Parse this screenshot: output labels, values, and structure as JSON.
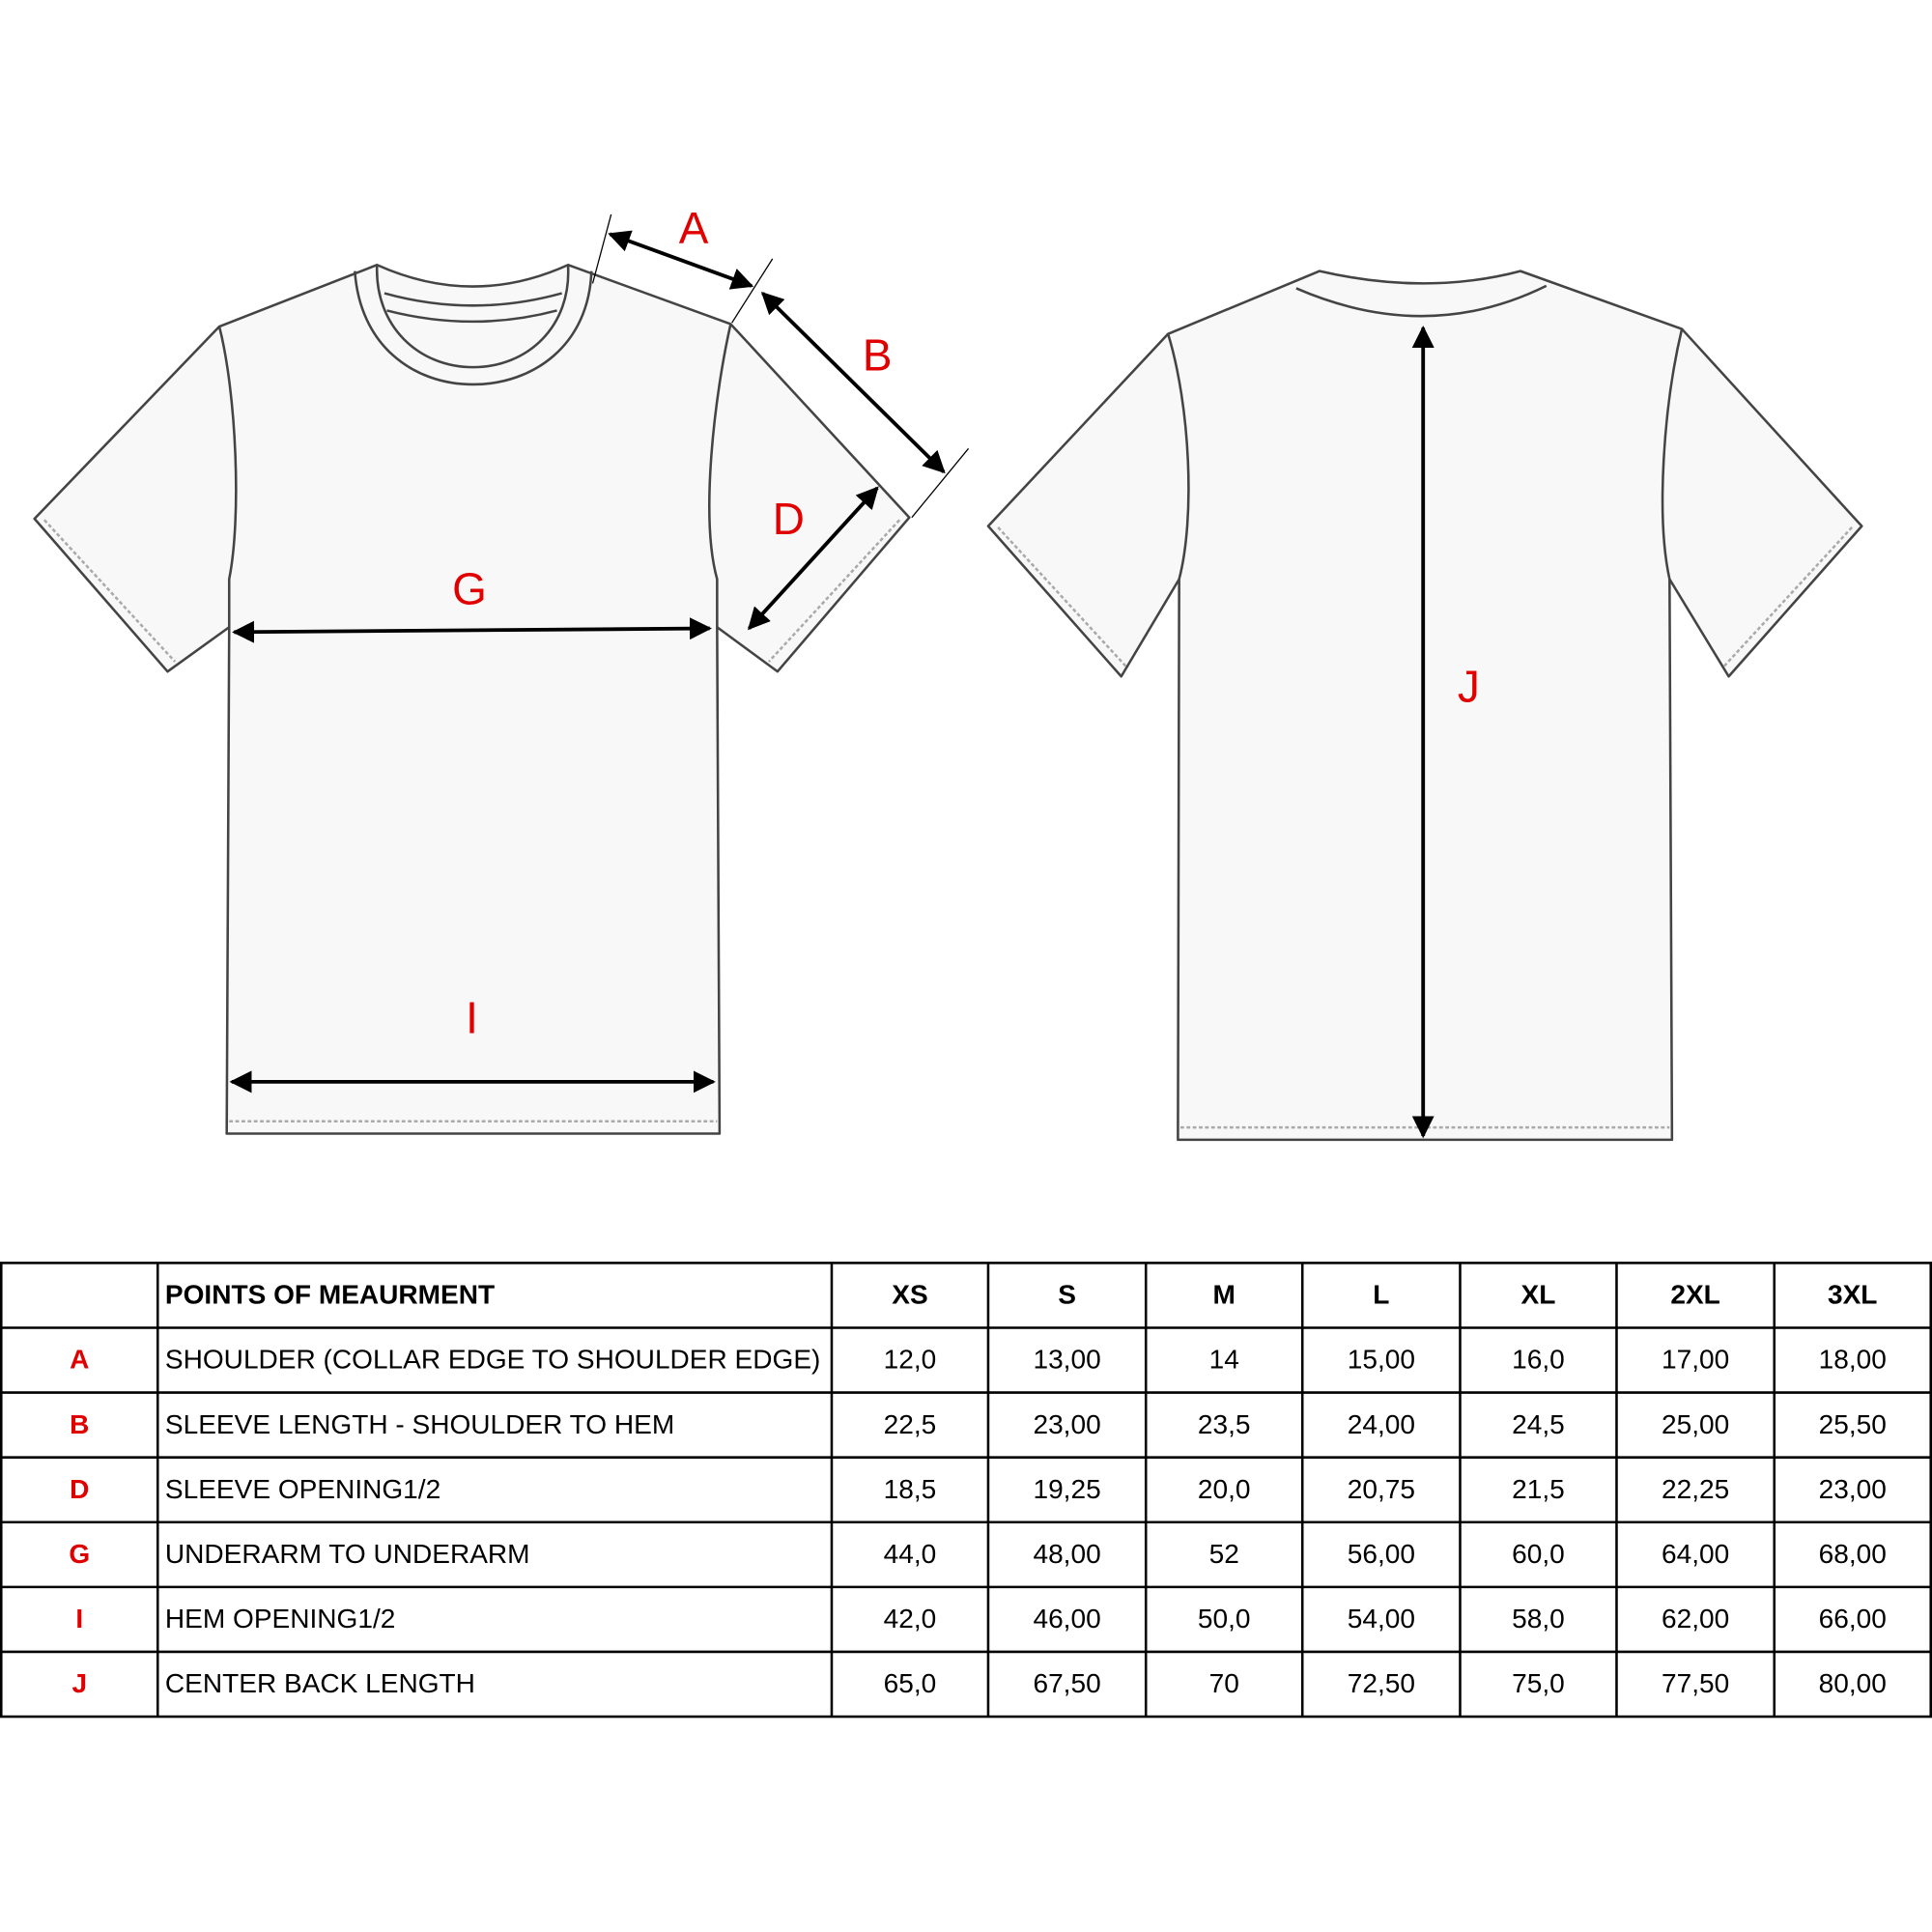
{
  "diagram": {
    "labels": [
      "A",
      "B",
      "D",
      "G",
      "I",
      "J"
    ]
  },
  "table": {
    "header": {
      "title": "POINTS OF MEAURMENT",
      "sizes": [
        "XS",
        "S",
        "M",
        "L",
        "XL",
        "2XL",
        "3XL"
      ]
    },
    "rows": [
      {
        "code": "A",
        "name": "SHOULDER (COLLAR EDGE TO SHOULDER EDGE)",
        "values": [
          "12,0",
          "13,00",
          "14",
          "15,00",
          "16,0",
          "17,00",
          "18,00"
        ]
      },
      {
        "code": "B",
        "name": "SLEEVE LENGTH - SHOULDER TO HEM",
        "values": [
          "22,5",
          "23,00",
          "23,5",
          "24,00",
          "24,5",
          "25,00",
          "25,50"
        ]
      },
      {
        "code": "D",
        "name": "SLEEVE OPENING1/2",
        "values": [
          "18,5",
          "19,25",
          "20,0",
          "20,75",
          "21,5",
          "22,25",
          "23,00"
        ]
      },
      {
        "code": "G",
        "name": "UNDERARM TO UNDERARM",
        "values": [
          "44,0",
          "48,00",
          "52",
          "56,00",
          "60,0",
          "64,00",
          "68,00"
        ]
      },
      {
        "code": "I",
        "name": "HEM OPENING1/2",
        "values": [
          "42,0",
          "46,00",
          "50,0",
          "54,00",
          "58,0",
          "62,00",
          "66,00"
        ]
      },
      {
        "code": "J",
        "name": "CENTER BACK LENGTH",
        "values": [
          "65,0",
          "67,50",
          "70",
          "72,50",
          "75,0",
          "77,50",
          "80,00"
        ]
      }
    ]
  }
}
